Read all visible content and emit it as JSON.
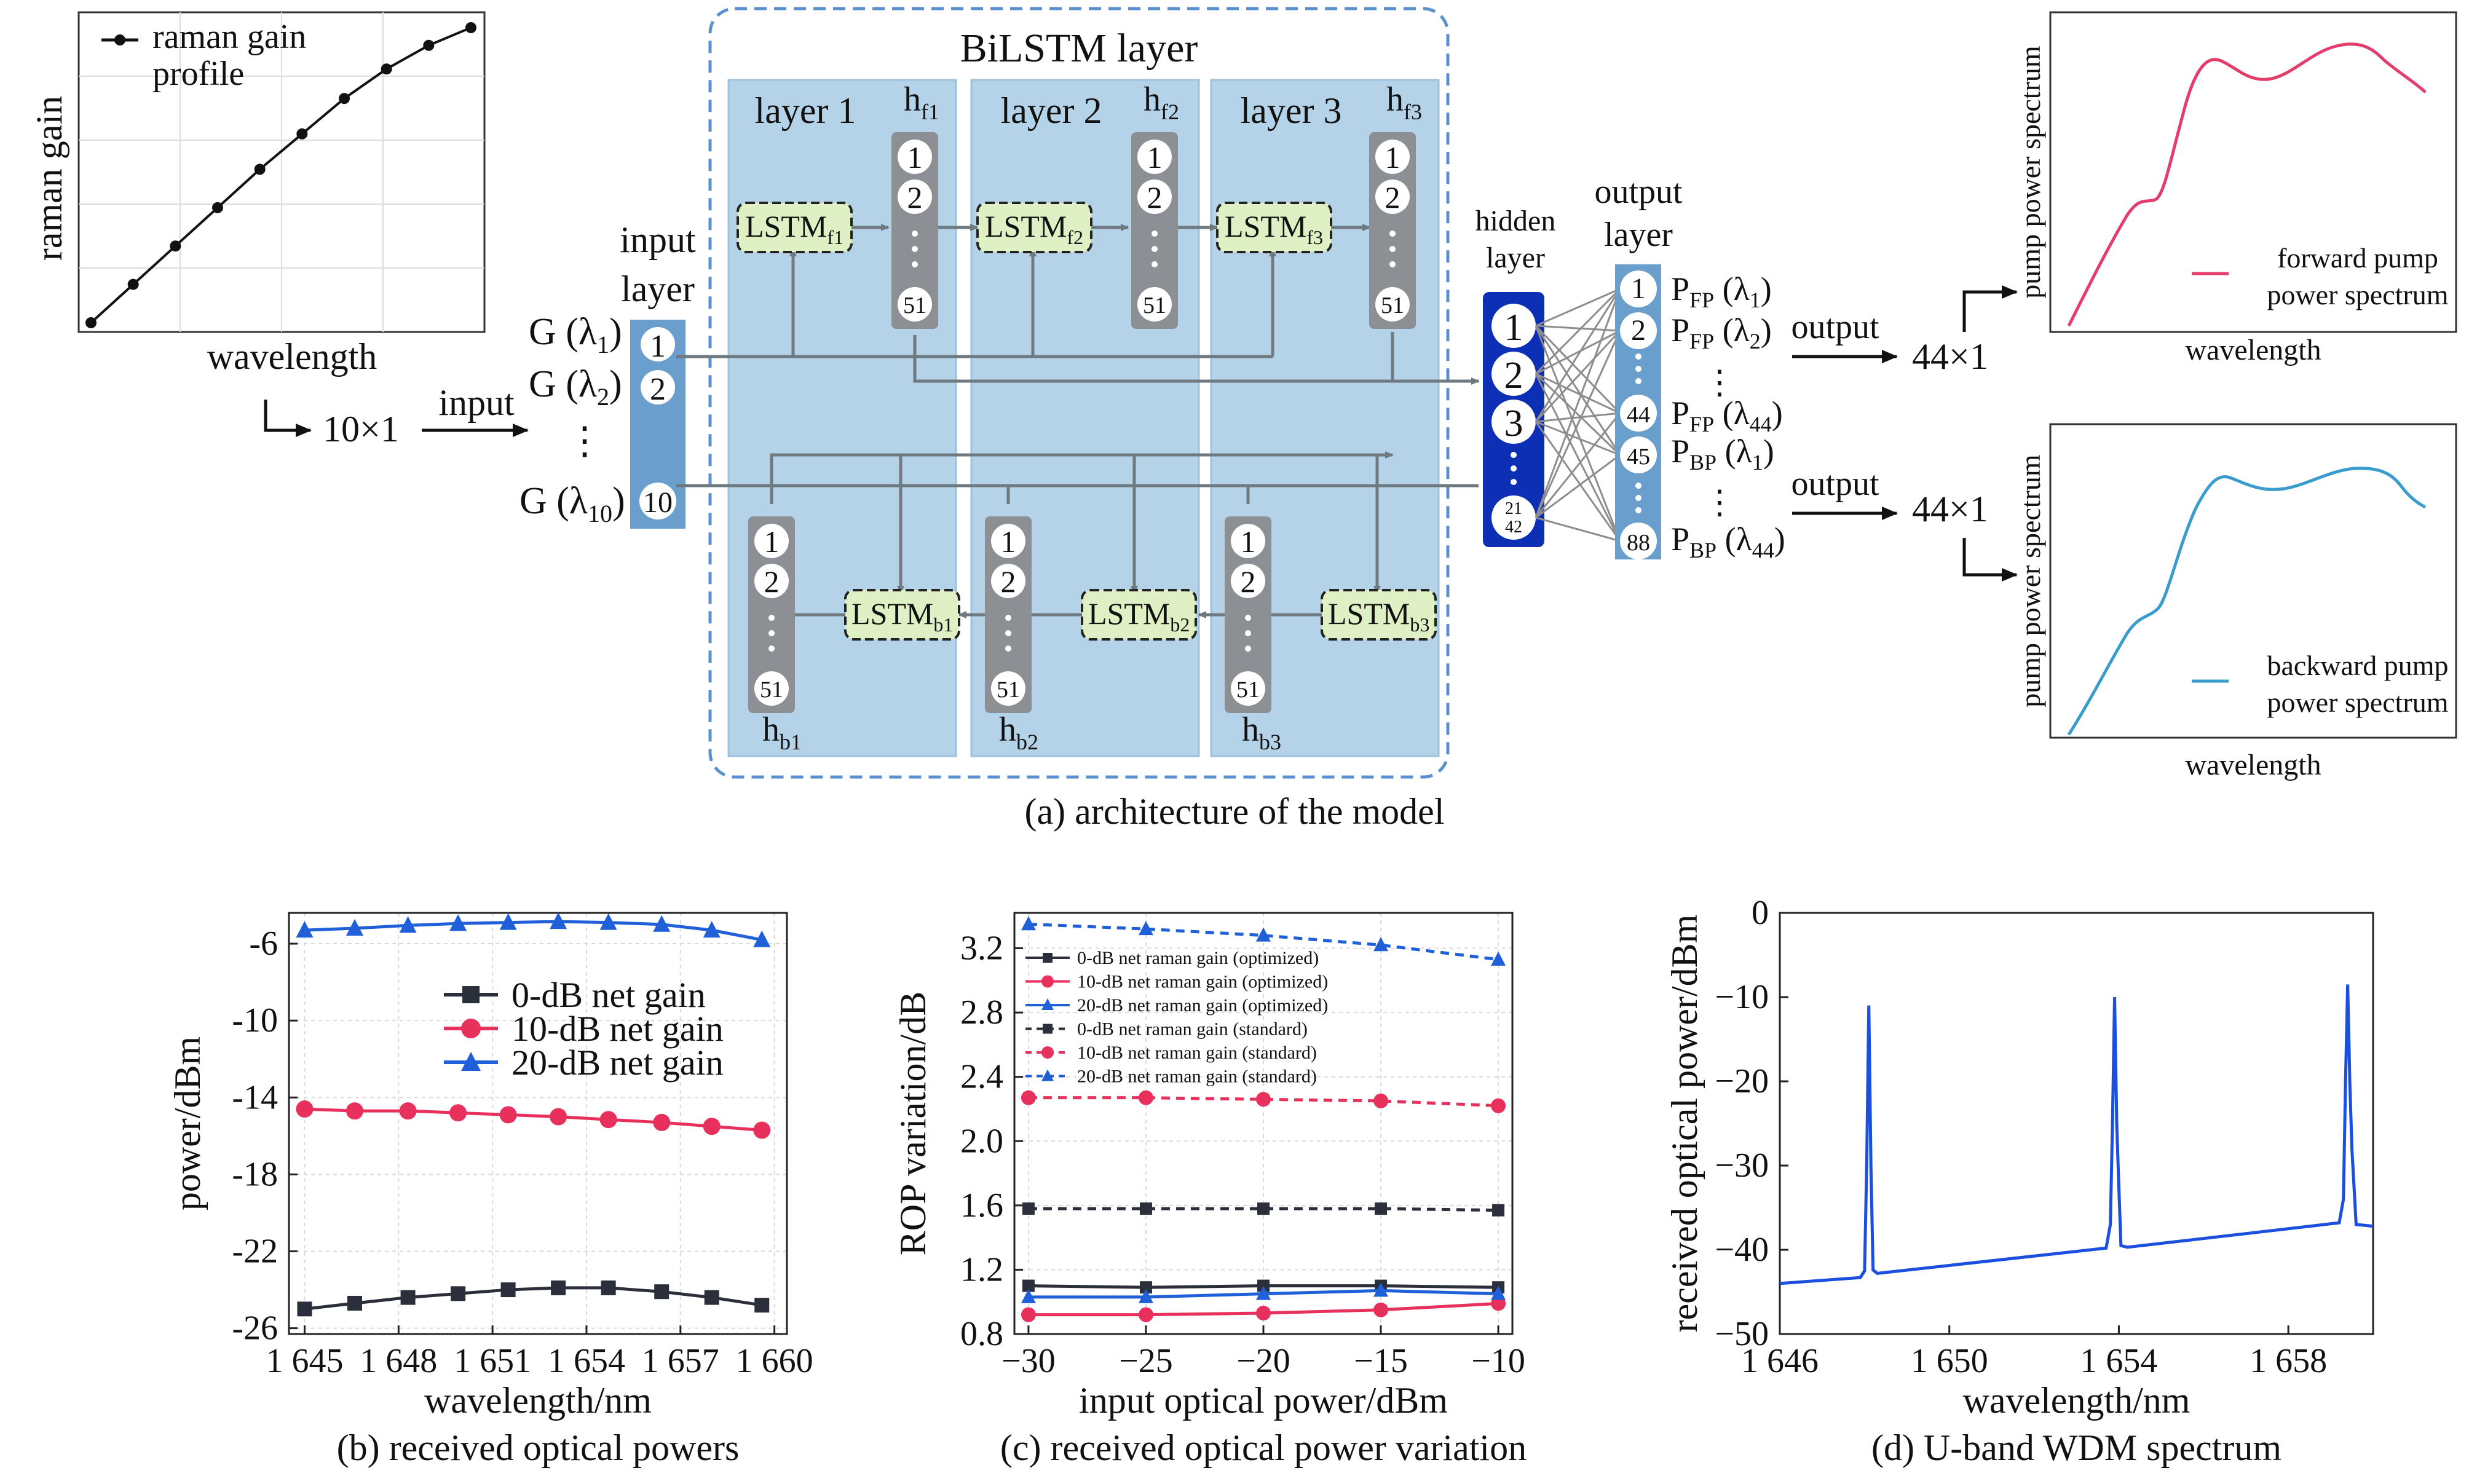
{
  "colors": {
    "layer_panel": "#b5d3e8",
    "layer_panel_stroke": "#9cc2dd",
    "dashed_frame": "#5a90d0",
    "input_col": "#6a9fcd",
    "hidden_col": "#0c2fb5",
    "output_col": "#6a9fcd",
    "h_col": "#8c8f93",
    "lstm_fill": "#dff0c4",
    "connector": "#6f7980",
    "fan_line": "#8d8d8d",
    "fwd_spectrum": "#e43c6b",
    "bwd_spectrum": "#3a9ccc",
    "series_black": "#2b2f3b",
    "series_red": "#e8305c",
    "series_blue": "#1f5fd8",
    "wdm_blue": "#1b4fe0"
  },
  "arch": {
    "title": "BiLSTM layer",
    "caption": "(a) architecture of the model",
    "layer_labels": [
      "layer 1",
      "layer 2",
      "layer 3"
    ],
    "hf_labels": [
      {
        "main": "h",
        "sub": "f1"
      },
      {
        "main": "h",
        "sub": "f2"
      },
      {
        "main": "h",
        "sub": "f3"
      }
    ],
    "hb_labels": [
      {
        "main": "h",
        "sub": "b1"
      },
      {
        "main": "h",
        "sub": "b2"
      },
      {
        "main": "h",
        "sub": "b3"
      }
    ],
    "lstm_f": [
      {
        "main": "LSTM",
        "sub": "f1"
      },
      {
        "main": "LSTM",
        "sub": "f2"
      },
      {
        "main": "LSTM",
        "sub": "f3"
      }
    ],
    "lstm_b": [
      {
        "main": "LSTM",
        "sub": "b1"
      },
      {
        "main": "LSTM",
        "sub": "b2"
      },
      {
        "main": "LSTM",
        "sub": "b3"
      }
    ],
    "h_nodes": [
      "1",
      "2",
      "51"
    ],
    "input_layer": {
      "label1": "input",
      "label2": "layer",
      "nodes": [
        "1",
        "2",
        "10"
      ]
    },
    "hidden_layer": {
      "label1": "hidden",
      "label2": "layer",
      "nodes": [
        "1",
        "2",
        "3"
      ],
      "last_top": "21",
      "last_bottom": "42"
    },
    "output_layer": {
      "label1": "output",
      "label2": "layer",
      "nodes": [
        "1",
        "2",
        "44",
        "45",
        "88"
      ]
    },
    "g_labels": [
      {
        "main": "G (λ",
        "sub": "1",
        "end": ")"
      },
      {
        "main": "G (λ",
        "sub": "2",
        "end": ")"
      },
      {
        "main": "G (λ",
        "sub": "10",
        "end": ")"
      }
    ],
    "p_labels": [
      {
        "main": "P",
        "sub": "FP",
        "rest": " (λ",
        "sub2": "1",
        "end": ")"
      },
      {
        "main": "P",
        "sub": "FP",
        "rest": " (λ",
        "sub2": "2",
        "end": ")"
      },
      {
        "main": "P",
        "sub": "FP",
        "rest": " (λ",
        "sub2": "44",
        "end": ")"
      },
      {
        "main": "P",
        "sub": "BP",
        "rest": " (λ",
        "sub2": "1",
        "end": ")"
      },
      {
        "main": "P",
        "sub": "BP",
        "rest": " (λ",
        "sub2": "44",
        "end": ")"
      }
    ],
    "in_dim": "10×1",
    "input_word": "input",
    "output_word": "output",
    "out_dim": "44×1",
    "ellipsis": "⋮"
  },
  "raman_plot": {
    "ylabel": "raman gain",
    "xlabel": "wavelength",
    "legend": "raman gain\nprofile",
    "values": [
      0.0,
      0.13,
      0.26,
      0.39,
      0.52,
      0.64,
      0.76,
      0.86,
      0.94,
      1.0
    ]
  },
  "fwd_spectrum": {
    "ylabel": "pump power spectrum",
    "xlabel": "wavelength",
    "legend_line1": "forward pump",
    "legend_line2": "power spectrum"
  },
  "bwd_spectrum": {
    "ylabel": "pump power spectrum",
    "xlabel": "wavelength",
    "legend_line1": "backward pump",
    "legend_line2": "power spectrum"
  },
  "chart_data": [
    {
      "type": "line",
      "caption": "(b) received optical powers",
      "xlabel": "wavelength/nm",
      "ylabel": "power/dBm",
      "x": [
        1645,
        1646.6,
        1648.3,
        1649.9,
        1651.5,
        1653.1,
        1654.7,
        1656.4,
        1658.0,
        1659.6
      ],
      "xticks": [
        "1 645",
        "1 648",
        "1 651",
        "1 654",
        "1 657",
        "1 660"
      ],
      "xtick_values": [
        1645,
        1648,
        1651,
        1654,
        1657,
        1660
      ],
      "yticks": [
        "-6",
        "-10",
        "-14",
        "-18",
        "-22",
        "-26"
      ],
      "ytick_values": [
        -6,
        -10,
        -14,
        -18,
        -22,
        -26
      ],
      "xlim": [
        1644.5,
        1660.4
      ],
      "ylim": [
        -26.3,
        -4.4
      ],
      "series": [
        {
          "name": "0-dB net gain",
          "color": "#2b2f3b",
          "marker": "square",
          "values": [
            -25.0,
            -24.7,
            -24.4,
            -24.2,
            -24.0,
            -23.9,
            -23.9,
            -24.1,
            -24.4,
            -24.8
          ]
        },
        {
          "name": "10-dB net gain",
          "color": "#e8305c",
          "marker": "circle",
          "values": [
            -14.6,
            -14.7,
            -14.7,
            -14.8,
            -14.9,
            -15.0,
            -15.15,
            -15.3,
            -15.5,
            -15.7
          ]
        },
        {
          "name": "20-dB net gain",
          "color": "#1f5fd8",
          "marker": "triangle",
          "values": [
            -5.3,
            -5.2,
            -5.05,
            -4.95,
            -4.9,
            -4.85,
            -4.9,
            -5.0,
            -5.3,
            -5.8
          ]
        }
      ]
    },
    {
      "type": "line",
      "caption": "(c) received optical power variation",
      "xlabel": "input optical power/dBm",
      "ylabel": "ROP variation/dB",
      "x": [
        -30,
        -25,
        -20,
        -15,
        -10
      ],
      "xticks": [
        "−30",
        "−25",
        "−20",
        "−15",
        "−10"
      ],
      "xtick_values": [
        -30,
        -25,
        -20,
        -15,
        -10
      ],
      "yticks": [
        "3.2",
        "2.8",
        "2.4",
        "2.0",
        "1.6",
        "1.2",
        "0.8"
      ],
      "ytick_values": [
        3.2,
        2.8,
        2.4,
        2.0,
        1.6,
        1.2,
        0.8
      ],
      "xlim": [
        -30.6,
        -9.4
      ],
      "ylim": [
        0.8,
        3.42
      ],
      "series": [
        {
          "name": "0-dB net raman gain (optimized)",
          "color": "#2b2f3b",
          "marker": "square",
          "dashed": false,
          "values": [
            1.1,
            1.09,
            1.1,
            1.1,
            1.09
          ]
        },
        {
          "name": "10-dB net raman gain (optimized)",
          "color": "#e8305c",
          "marker": "circle",
          "dashed": false,
          "values": [
            0.92,
            0.92,
            0.93,
            0.95,
            0.99
          ]
        },
        {
          "name": "20-dB net raman gain (optimized)",
          "color": "#1f5fd8",
          "marker": "triangle",
          "dashed": false,
          "values": [
            1.03,
            1.03,
            1.05,
            1.07,
            1.05
          ]
        },
        {
          "name": "0-dB net raman gain (standard)",
          "color": "#2b2f3b",
          "marker": "square",
          "dashed": true,
          "values": [
            1.58,
            1.58,
            1.58,
            1.58,
            1.57
          ]
        },
        {
          "name": "10-dB net raman gain (standard)",
          "color": "#e8305c",
          "marker": "circle",
          "dashed": true,
          "values": [
            2.27,
            2.27,
            2.26,
            2.25,
            2.22
          ]
        },
        {
          "name": "20-dB net raman gain (standard)",
          "color": "#1f5fd8",
          "marker": "triangle",
          "dashed": true,
          "values": [
            3.35,
            3.32,
            3.28,
            3.22,
            3.13
          ]
        }
      ]
    },
    {
      "type": "line",
      "caption": "(d) U-band WDM spectrum",
      "xlabel": "wavelength/nm",
      "ylabel": "received optical power/dBm",
      "xticks": [
        "1 646",
        "1 650",
        "1 654",
        "1 658"
      ],
      "xtick_values": [
        1646,
        1650,
        1654,
        1658
      ],
      "yticks": [
        "0",
        "−10",
        "−20",
        "−30",
        "−40",
        "−50"
      ],
      "ytick_values": [
        0,
        -10,
        -20,
        -30,
        -40,
        -50
      ],
      "xlim": [
        1646,
        1660
      ],
      "ylim": [
        -50,
        0
      ],
      "series": [
        {
          "name": "",
          "color": "#1b4fe0",
          "points": [
            [
              1646.0,
              -44.0
            ],
            [
              1647.9,
              -43.3
            ],
            [
              1648.0,
              -42.5
            ],
            [
              1648.05,
              -30
            ],
            [
              1648.1,
              -11.0
            ],
            [
              1648.15,
              -30
            ],
            [
              1648.2,
              -42.4
            ],
            [
              1648.3,
              -42.8
            ],
            [
              1653.7,
              -39.8
            ],
            [
              1653.8,
              -37.0
            ],
            [
              1653.85,
              -25
            ],
            [
              1653.9,
              -10.0
            ],
            [
              1653.95,
              -25
            ],
            [
              1654.0,
              -32.5
            ],
            [
              1654.05,
              -39.5
            ],
            [
              1654.2,
              -39.7
            ],
            [
              1659.2,
              -36.8
            ],
            [
              1659.3,
              -34
            ],
            [
              1659.35,
              -20
            ],
            [
              1659.4,
              -8.5
            ],
            [
              1659.45,
              -20
            ],
            [
              1659.5,
              -28
            ],
            [
              1659.6,
              -37.0
            ],
            [
              1660.0,
              -37.2
            ]
          ]
        }
      ]
    }
  ]
}
